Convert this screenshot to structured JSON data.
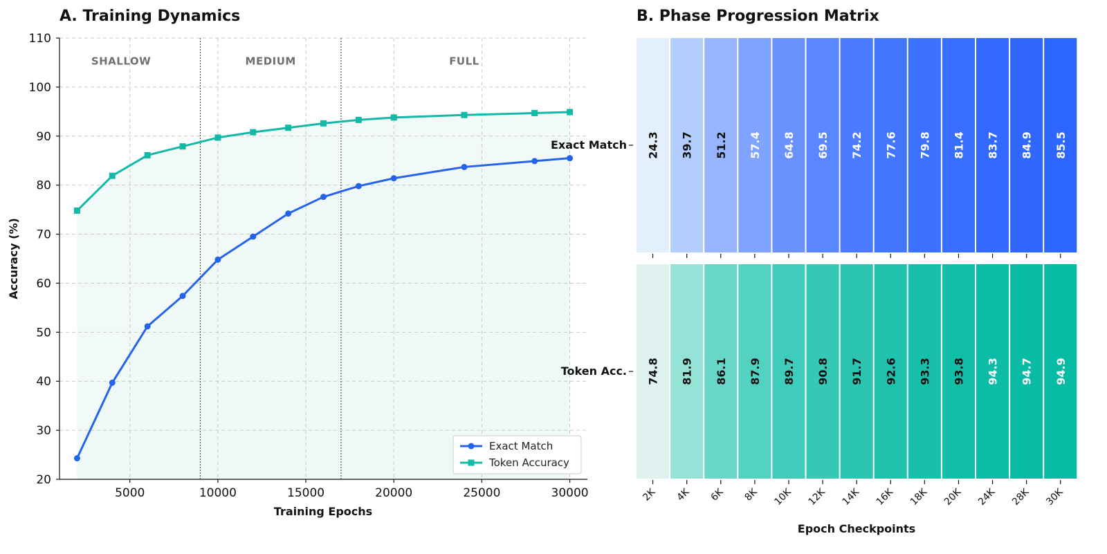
{
  "chart_data": [
    {
      "type": "line",
      "title": "A. Training Dynamics",
      "xlabel": "Training Epochs",
      "ylabel": "Accuracy (%)",
      "xlim": [
        1000,
        31000
      ],
      "ylim": [
        20,
        110
      ],
      "xticks": [
        5000,
        10000,
        15000,
        20000,
        25000,
        30000
      ],
      "yticks": [
        20,
        30,
        40,
        50,
        60,
        70,
        80,
        90,
        100,
        110
      ],
      "x": [
        2000,
        4000,
        6000,
        8000,
        10000,
        12000,
        14000,
        16000,
        18000,
        20000,
        24000,
        28000,
        30000
      ],
      "series": [
        {
          "name": "Exact Match",
          "color": "#2563eb",
          "fill": "#e6f1fa",
          "marker": "circle",
          "values": [
            24.3,
            39.7,
            51.2,
            57.4,
            64.8,
            69.5,
            74.2,
            77.6,
            79.8,
            81.4,
            83.7,
            84.9,
            85.5
          ]
        },
        {
          "name": "Token Accuracy",
          "color": "#14b8a6",
          "fill": "#eef9f7",
          "marker": "square",
          "values": [
            74.8,
            81.9,
            86.1,
            87.9,
            89.7,
            90.8,
            91.7,
            92.6,
            93.3,
            93.8,
            94.3,
            94.7,
            94.9
          ]
        }
      ],
      "phase_boundaries": [
        9000,
        17000
      ],
      "phases": [
        {
          "label": "SHALLOW",
          "center": 4500
        },
        {
          "label": "MEDIUM",
          "center": 13000
        },
        {
          "label": "FULL",
          "center": 24000
        }
      ],
      "grid": true,
      "legend_position": "lower-right"
    },
    {
      "type": "heatmap",
      "title": "B. Phase Progression Matrix",
      "xlabel": "Epoch Checkpoints",
      "categories": [
        "2K",
        "4K",
        "6K",
        "8K",
        "10K",
        "12K",
        "14K",
        "16K",
        "18K",
        "20K",
        "24K",
        "28K",
        "30K"
      ],
      "rows": [
        {
          "label": "Exact Match",
          "values": [
            24.3,
            39.7,
            51.2,
            57.4,
            64.8,
            69.5,
            74.2,
            77.6,
            79.8,
            81.4,
            83.7,
            84.9,
            85.5
          ],
          "colors": [
            "#e3f0fb",
            "#b3cdfd",
            "#97b5fe",
            "#80a3ff",
            "#6a92ff",
            "#5a87ff",
            "#4b7cff",
            "#4276ff",
            "#3c71ff",
            "#386eff",
            "#326aff",
            "#2f67ff",
            "#2d66ff"
          ],
          "text_colors": [
            "#111111",
            "#111111",
            "#111111",
            "#ffffff",
            "#ffffff",
            "#ffffff",
            "#ffffff",
            "#ffffff",
            "#ffffff",
            "#ffffff",
            "#ffffff",
            "#ffffff",
            "#ffffff"
          ]
        },
        {
          "label": "Token Acc.",
          "values": [
            74.8,
            81.9,
            86.1,
            87.9,
            89.7,
            90.8,
            91.7,
            92.6,
            93.3,
            93.8,
            94.3,
            94.7,
            94.9
          ],
          "colors": [
            "#e0f2ef",
            "#94e3d6",
            "#68d7c7",
            "#54d2c1",
            "#40ccba",
            "#34c8b5",
            "#2bc5b1",
            "#20c2ad",
            "#18bfaa",
            "#13bda8",
            "#0dbca6",
            "#09bba5",
            "#07baa4"
          ],
          "text_colors": [
            "#111111",
            "#111111",
            "#111111",
            "#111111",
            "#111111",
            "#111111",
            "#111111",
            "#111111",
            "#111111",
            "#111111",
            "#ffffff",
            "#ffffff",
            "#ffffff"
          ]
        }
      ]
    }
  ]
}
